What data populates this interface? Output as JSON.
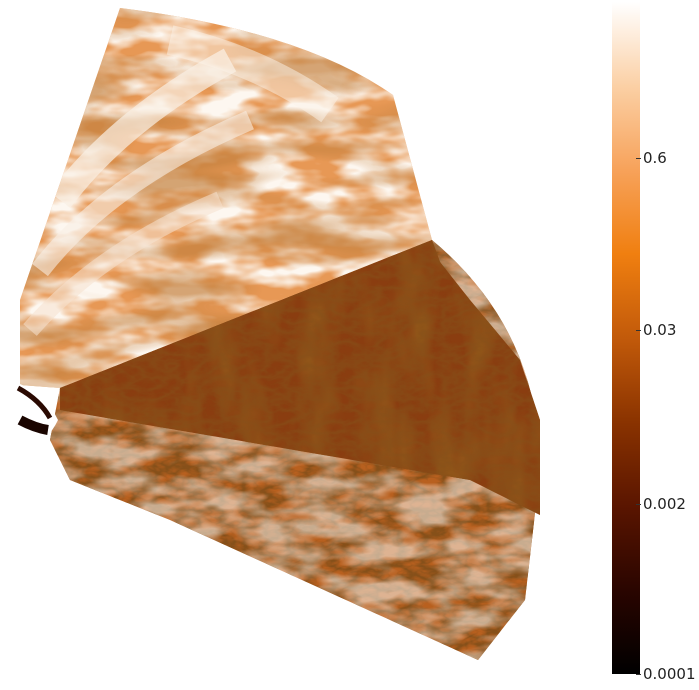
{
  "colorbar": {
    "ticks": [
      "0.6",
      "0.03",
      "0.002",
      "0.0001"
    ],
    "stops": [
      "#000000",
      "#2a0500",
      "#5a1500",
      "#8a3300",
      "#c25a0a",
      "#f07f10",
      "#f7a25a",
      "#fbd0a5",
      "#ffffff"
    ]
  },
  "colors": {
    "light": "#f6e6d4",
    "mid": "#c8702a",
    "dark": "#6b2a08",
    "deep": "#3a1002"
  }
}
